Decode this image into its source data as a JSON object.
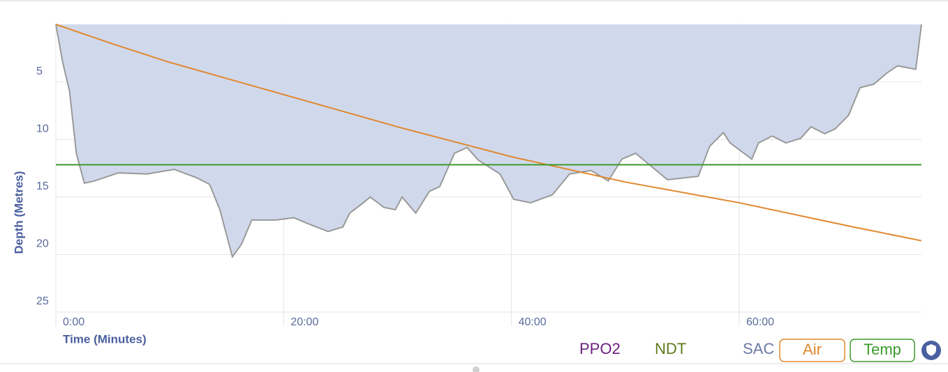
{
  "chart_data": {
    "type": "line",
    "xlabel": "Time (Minutes)",
    "ylabel": "Depth (Metres)",
    "xlim": [
      0,
      76
    ],
    "ylim": [
      0,
      25
    ],
    "y_inverted": true,
    "xticks": [
      {
        "value": 0,
        "label": "0:00"
      },
      {
        "value": 20,
        "label": "20:00"
      },
      {
        "value": 40,
        "label": "40:00"
      },
      {
        "value": 60,
        "label": "60:00"
      }
    ],
    "yticks": [
      5,
      10,
      15,
      20,
      25
    ],
    "grid": true,
    "profile": {
      "color": "#999999",
      "fill": "#d0d9ec",
      "x": [
        0,
        0.6,
        1.2,
        1.8,
        2.5,
        3.4,
        4.3,
        5.5,
        8.0,
        10.4,
        12.3,
        13.5,
        14.4,
        15.5,
        16.3,
        17.2,
        19.3,
        20.9,
        22.1,
        23.9,
        25.2,
        25.8,
        27.0,
        27.6,
        28.8,
        29.8,
        30.4,
        31.6,
        32.8,
        33.7,
        35.0,
        36.1,
        37.1,
        39.0,
        40.2,
        41.7,
        43.6,
        45.1,
        47.0,
        48.5,
        49.7,
        50.9,
        53.7,
        56.4,
        57.4,
        58.6,
        59.2,
        61.1,
        61.7,
        62.9,
        64.1,
        65.4,
        66.3,
        67.5,
        68.4,
        69.0,
        69.6,
        70.6,
        71.8,
        73.0,
        73.9,
        75.5,
        76
      ],
      "values": [
        0,
        3.3,
        5.8,
        11.2,
        13.8,
        13.6,
        13.3,
        12.9,
        13.0,
        12.6,
        13.3,
        13.9,
        16.1,
        20.2,
        19.1,
        17.0,
        17.0,
        16.8,
        17.3,
        18.0,
        17.6,
        16.4,
        15.5,
        15.0,
        15.9,
        16.1,
        15.0,
        16.4,
        14.5,
        14.1,
        11.2,
        10.7,
        11.8,
        13.0,
        15.2,
        15.5,
        14.8,
        13.0,
        12.7,
        13.6,
        11.7,
        11.2,
        13.5,
        13.2,
        10.6,
        9.4,
        10.3,
        11.7,
        10.3,
        9.7,
        10.3,
        9.9,
        8.9,
        9.5,
        9.1,
        8.5,
        7.9,
        5.5,
        5.2,
        4.2,
        3.6,
        3.9,
        0
      ]
    },
    "series": [
      {
        "name": "Air",
        "color": "#e0882e",
        "x": [
          0,
          5,
          10,
          20,
          30,
          40,
          50,
          60,
          70,
          76
        ],
        "values": [
          0,
          1.7,
          3.3,
          6.1,
          8.9,
          11.5,
          13.7,
          15.5,
          17.6,
          18.8
        ]
      },
      {
        "name": "Temp",
        "color": "#3a9a2a",
        "x": [
          0,
          76
        ],
        "values": [
          12.2,
          12.2
        ]
      }
    ],
    "legend_toggles": [
      {
        "name": "PPO2",
        "color": "#6a1f7a"
      },
      {
        "name": "NDT",
        "color": "#5f7a1f"
      },
      {
        "name": "SAC",
        "color": "#6a7aa6"
      }
    ]
  }
}
